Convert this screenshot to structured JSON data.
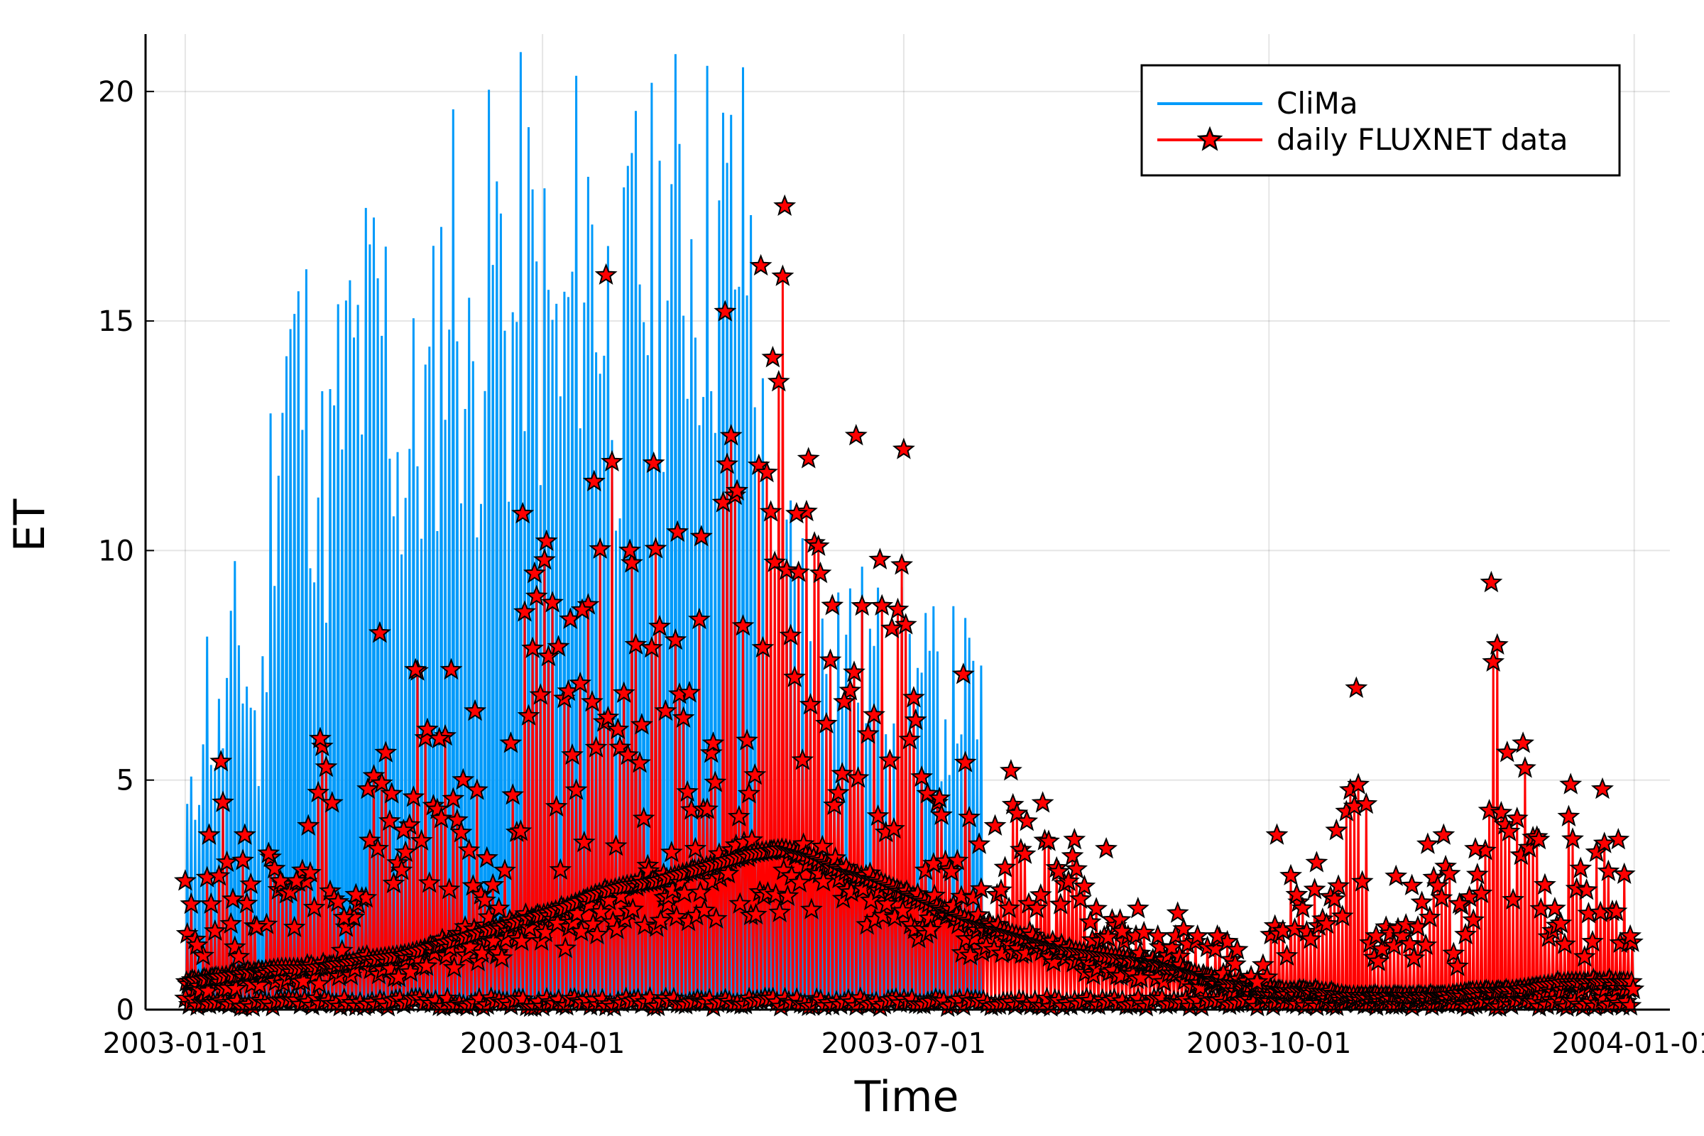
{
  "chart_data": {
    "type": "line",
    "xlabel": "Time",
    "ylabel": "ET",
    "x_tick_labels": [
      "2003-01-01",
      "2003-04-01",
      "2003-07-01",
      "2003-10-01",
      "2004-01-01"
    ],
    "x_ticks_day_of_year": [
      0,
      90,
      181,
      273,
      365
    ],
    "y_tick_labels": [
      "0",
      "5",
      "10",
      "15",
      "20"
    ],
    "y_ticks": [
      0,
      5,
      10,
      15,
      20
    ],
    "xlim": [
      "2002-12-22",
      "2004-01-10"
    ],
    "ylim": [
      0,
      21.25
    ],
    "grid": true,
    "legend_position": "top-right",
    "series": [
      {
        "name": "CliMa",
        "color": "#009AFA",
        "style": "line",
        "description": "half-hourly model output, strong diurnal cycle, ends 2003-07-21",
        "x_range": [
          "2003-01-01",
          "2003-07-21"
        ],
        "daily_peak_x": [
          "2003-01-03",
          "2003-01-06",
          "2003-01-09",
          "2003-01-14",
          "2003-01-17",
          "2003-01-20",
          "2003-01-23",
          "2003-01-27",
          "2003-02-01",
          "2003-02-05",
          "2003-02-09",
          "2003-02-12",
          "2003-02-16",
          "2003-02-20",
          "2003-02-24",
          "2003-02-28",
          "2003-03-04",
          "2003-03-07",
          "2003-03-10",
          "2003-03-13",
          "2003-03-17",
          "2003-03-20",
          "2003-03-24",
          "2003-03-27",
          "2003-03-30",
          "2003-04-03",
          "2003-04-06",
          "2003-04-10",
          "2003-04-14",
          "2003-04-17",
          "2003-04-21",
          "2003-04-25",
          "2003-04-29",
          "2003-05-03",
          "2003-05-07",
          "2003-05-11",
          "2003-05-15",
          "2003-05-19",
          "2003-05-23",
          "2003-05-27",
          "2003-06-01",
          "2003-06-05",
          "2003-06-09",
          "2003-06-13",
          "2003-06-17",
          "2003-06-21",
          "2003-06-25",
          "2003-06-29",
          "2003-07-03",
          "2003-07-07",
          "2003-07-11",
          "2003-07-15",
          "2003-07-19"
        ],
        "daily_peak_y": [
          5.2,
          9.4,
          7.0,
          10.2,
          9.0,
          6.8,
          15.8,
          18.1,
          17.2,
          13.8,
          16.7,
          17.6,
          18.4,
          19.2,
          15.0,
          15.9,
          16.5,
          20.0,
          21.4,
          16.3,
          19.0,
          21.4,
          18.0,
          21.4,
          19.5,
          18.8,
          17.4,
          21.4,
          21.4,
          19.1,
          17.6,
          21.4,
          20.1,
          21.4,
          21.4,
          21.4,
          21.4,
          21.4,
          21.4,
          13.8,
          12.3,
          11.6,
          11.1,
          10.7,
          10.2,
          9.8,
          9.4,
          9.3,
          9.1,
          8.9,
          8.6,
          9.0,
          8.4
        ]
      },
      {
        "name": "daily FLUXNET data",
        "color": "#FF0000",
        "marker": "star",
        "marker_stroke": "#000000",
        "style": "line+markers",
        "description": "observations on a diurnal cycle, daily-scale peaks",
        "x_range": [
          "2003-01-01",
          "2003-12-31"
        ],
        "daily_peak_x": [
          "2003-01-01",
          "2003-01-04",
          "2003-01-07",
          "2003-01-10",
          "2003-01-13",
          "2003-01-16",
          "2003-01-19",
          "2003-01-22",
          "2003-01-25",
          "2003-01-29",
          "2003-02-01",
          "2003-02-04",
          "2003-02-07",
          "2003-02-10",
          "2003-02-13",
          "2003-02-16",
          "2003-02-19",
          "2003-02-22",
          "2003-02-25",
          "2003-02-28",
          "2003-03-03",
          "2003-03-06",
          "2003-03-09",
          "2003-03-12",
          "2003-03-15",
          "2003-03-18",
          "2003-03-21",
          "2003-03-24",
          "2003-03-27",
          "2003-03-30",
          "2003-04-02",
          "2003-04-05",
          "2003-04-08",
          "2003-04-11",
          "2003-04-14",
          "2003-04-17",
          "2003-04-20",
          "2003-04-23",
          "2003-04-26",
          "2003-04-29",
          "2003-05-02",
          "2003-05-05",
          "2003-05-08",
          "2003-05-11",
          "2003-05-14",
          "2003-05-17",
          "2003-05-20",
          "2003-05-23",
          "2003-05-26",
          "2003-05-29",
          "2003-06-01",
          "2003-06-04",
          "2003-06-07",
          "2003-06-10",
          "2003-06-13",
          "2003-06-16",
          "2003-06-19",
          "2003-06-22",
          "2003-06-25",
          "2003-06-28",
          "2003-07-01",
          "2003-07-04",
          "2003-07-07",
          "2003-07-10",
          "2003-07-13",
          "2003-07-16",
          "2003-07-20",
          "2003-07-24",
          "2003-07-28",
          "2003-08-01",
          "2003-08-05",
          "2003-08-09",
          "2003-08-13",
          "2003-08-17",
          "2003-08-21",
          "2003-08-25",
          "2003-08-29",
          "2003-09-03",
          "2003-09-08",
          "2003-09-13",
          "2003-09-18",
          "2003-09-23",
          "2003-09-28",
          "2003-10-03",
          "2003-10-08",
          "2003-10-13",
          "2003-10-18",
          "2003-10-23",
          "2003-10-28",
          "2003-11-02",
          "2003-11-06",
          "2003-11-10",
          "2003-11-14",
          "2003-11-18",
          "2003-11-22",
          "2003-11-26",
          "2003-11-30",
          "2003-12-04",
          "2003-12-08",
          "2003-12-12",
          "2003-12-16",
          "2003-12-20",
          "2003-12-24",
          "2003-12-28",
          "2003-12-31"
        ],
        "daily_peak_y": [
          2.8,
          1.4,
          3.8,
          5.4,
          2.4,
          3.8,
          1.8,
          3.4,
          2.8,
          2.8,
          4.0,
          5.9,
          4.5,
          2.0,
          2.5,
          4.8,
          8.2,
          4.7,
          3.9,
          7.4,
          6.1,
          5.9,
          7.4,
          5.0,
          6.5,
          3.3,
          2.2,
          5.8,
          10.8,
          9.5,
          10.2,
          7.9,
          8.5,
          8.7,
          11.5,
          16.0,
          6.1,
          10.0,
          6.2,
          11.9,
          6.5,
          10.4,
          6.9,
          10.3,
          5.8,
          15.2,
          11.3,
          4.7,
          16.2,
          14.2,
          17.5,
          10.8,
          12.0,
          9.5,
          8.8,
          6.7,
          12.5,
          6.0,
          9.8,
          8.3,
          12.2,
          6.3,
          4.7,
          4.6,
          3.0,
          7.3,
          3.6,
          4.0,
          5.2,
          4.1,
          4.5,
          3.0,
          3.7,
          1.9,
          3.5,
          1.7,
          2.2,
          1.6,
          2.1,
          1.6,
          1.6,
          1.3,
          0.6,
          3.8,
          2.5,
          3.2,
          3.9,
          7.0,
          1.6,
          2.9,
          2.7,
          3.6,
          3.8,
          2.3,
          3.5,
          9.3,
          5.6,
          5.8,
          3.7,
          2.2,
          4.9,
          2.6,
          4.8,
          3.7,
          1.6
        ],
        "daily_mean_y": [
          0.6,
          0.7,
          0.8,
          0.9,
          0.9,
          1.0,
          1.1,
          1.2,
          1.4,
          1.6,
          1.8,
          2.0,
          2.2,
          2.5,
          2.7,
          2.8,
          3.0,
          3.2,
          3.4,
          3.5,
          3.3,
          3.0,
          2.8,
          2.5,
          2.2,
          1.9,
          1.7,
          1.5,
          1.3,
          1.2,
          1.1,
          1.0,
          0.8,
          0.6,
          0.5,
          0.4,
          0.4,
          0.3,
          0.3,
          0.3,
          0.3,
          0.4,
          0.4,
          0.5,
          0.6,
          0.6,
          0.6
        ]
      }
    ]
  }
}
